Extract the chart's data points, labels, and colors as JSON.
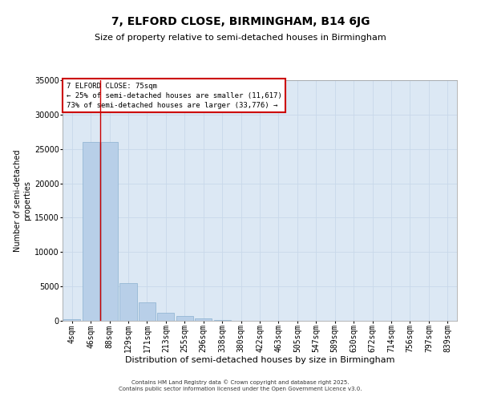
{
  "title": "7, ELFORD CLOSE, BIRMINGHAM, B14 6JG",
  "subtitle": "Size of property relative to semi-detached houses in Birmingham",
  "xlabel": "Distribution of semi-detached houses by size in Birmingham",
  "ylabel": "Number of semi-detached\nproperties",
  "categories": [
    "4sqm",
    "46sqm",
    "88sqm",
    "129sqm",
    "171sqm",
    "213sqm",
    "255sqm",
    "296sqm",
    "338sqm",
    "380sqm",
    "422sqm",
    "463sqm",
    "505sqm",
    "547sqm",
    "589sqm",
    "630sqm",
    "672sqm",
    "714sqm",
    "756sqm",
    "797sqm",
    "839sqm"
  ],
  "values": [
    200,
    26000,
    26000,
    5500,
    2700,
    1150,
    680,
    350,
    70,
    20,
    8,
    3,
    1,
    0,
    0,
    0,
    0,
    0,
    0,
    0,
    0
  ],
  "bar_color": "#b8cfe8",
  "bar_edge_color": "#8ab0d0",
  "grid_color": "#c8d8ea",
  "background_color": "#dce8f4",
  "red_line_x": 1.5,
  "annotation_text": "7 ELFORD CLOSE: 75sqm\n← 25% of semi-detached houses are smaller (11,617)\n73% of semi-detached houses are larger (33,776) →",
  "annotation_box_color": "#ffffff",
  "annotation_border_color": "#cc0000",
  "ylim": [
    0,
    35000
  ],
  "yticks": [
    0,
    5000,
    10000,
    15000,
    20000,
    25000,
    30000,
    35000
  ],
  "footer": "Contains HM Land Registry data © Crown copyright and database right 2025.\nContains public sector information licensed under the Open Government Licence v3.0.",
  "title_fontsize": 10,
  "subtitle_fontsize": 8,
  "xlabel_fontsize": 8,
  "ylabel_fontsize": 7,
  "tick_fontsize": 7,
  "annotation_fontsize": 6.5,
  "footer_fontsize": 5
}
